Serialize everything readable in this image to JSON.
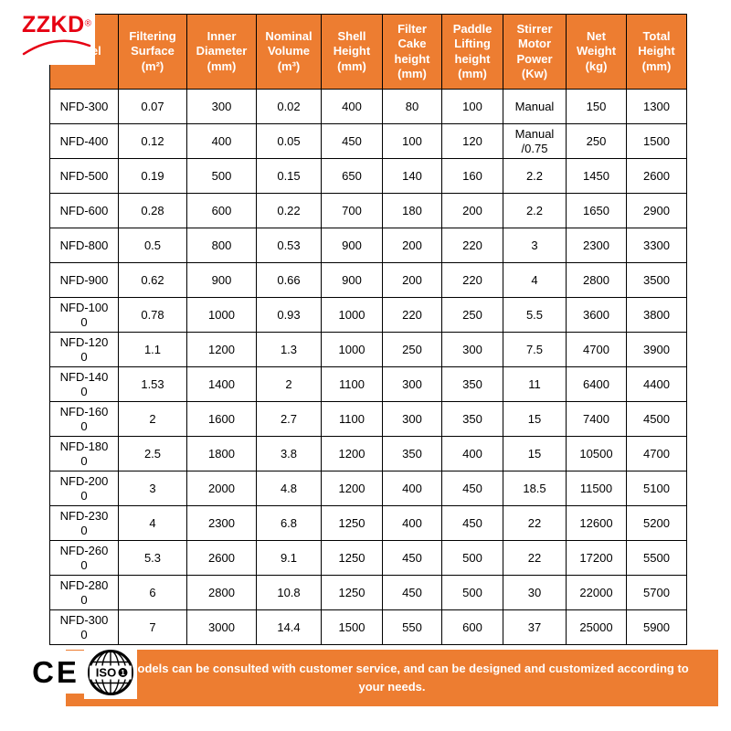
{
  "brand": {
    "name": "ZZKD",
    "registered_mark": "®"
  },
  "table": {
    "columns": [
      "Model",
      "Filtering Surface (m²)",
      "Inner Diameter (mm)",
      "Nominal Volume (m³)",
      "Shell Height (mm)",
      "Filter Cake height (mm)",
      "Paddle Lifting height (mm)",
      "Stirrer Motor Power (Kw)",
      "Net Weight (kg)",
      "Total Height (mm)"
    ],
    "rows": [
      [
        "NFD-300",
        "0.07",
        "300",
        "0.02",
        "400",
        "80",
        "100",
        "Manual",
        "150",
        "1300"
      ],
      [
        "NFD-400",
        "0.12",
        "400",
        "0.05",
        "450",
        "100",
        "120",
        "Manual /0.75",
        "250",
        "1500"
      ],
      [
        "NFD-500",
        "0.19",
        "500",
        "0.15",
        "650",
        "140",
        "160",
        "2.2",
        "1450",
        "2600"
      ],
      [
        "NFD-600",
        "0.28",
        "600",
        "0.22",
        "700",
        "180",
        "200",
        "2.2",
        "1650",
        "2900"
      ],
      [
        "NFD-800",
        "0.5",
        "800",
        "0.53",
        "900",
        "200",
        "220",
        "3",
        "2300",
        "3300"
      ],
      [
        "NFD-900",
        "0.62",
        "900",
        "0.66",
        "900",
        "200",
        "220",
        "4",
        "2800",
        "3500"
      ],
      [
        "NFD-1000",
        "0.78",
        "1000",
        "0.93",
        "1000",
        "220",
        "250",
        "5.5",
        "3600",
        "3800"
      ],
      [
        "NFD-1200",
        "1.1",
        "1200",
        "1.3",
        "1000",
        "250",
        "300",
        "7.5",
        "4700",
        "3900"
      ],
      [
        "NFD-1400",
        "1.53",
        "1400",
        "2",
        "1100",
        "300",
        "350",
        "11",
        "6400",
        "4400"
      ],
      [
        "NFD-1600",
        "2",
        "1600",
        "2.7",
        "1100",
        "300",
        "350",
        "15",
        "7400",
        "4500"
      ],
      [
        "NFD-1800",
        "2.5",
        "1800",
        "3.8",
        "1200",
        "350",
        "400",
        "15",
        "10500",
        "4700"
      ],
      [
        "NFD-2000",
        "3",
        "2000",
        "4.8",
        "1200",
        "400",
        "450",
        "18.5",
        "11500",
        "5100"
      ],
      [
        "NFD-2300",
        "4",
        "2300",
        "6.8",
        "1250",
        "400",
        "450",
        "22",
        "12600",
        "5200"
      ],
      [
        "NFD-2600",
        "5.3",
        "2600",
        "9.1",
        "1250",
        "450",
        "500",
        "22",
        "17200",
        "5500"
      ],
      [
        "NFD-2800",
        "6",
        "2800",
        "10.8",
        "1250",
        "450",
        "500",
        "30",
        "22000",
        "5700"
      ],
      [
        "NFD-3000",
        "7",
        "3000",
        "14.4",
        "1500",
        "550",
        "600",
        "37",
        "25000",
        "5900"
      ]
    ]
  },
  "footer": {
    "note": "More models can be consulted with customer service, and can be designed and customized according to your needs."
  },
  "certifications": {
    "ce_label": "CE",
    "iso_label": "ISO",
    "iso_badge_digit": "1"
  },
  "colors": {
    "accent_orange": "#ED7D31",
    "logo_red": "#E60012",
    "border": "#000000"
  }
}
